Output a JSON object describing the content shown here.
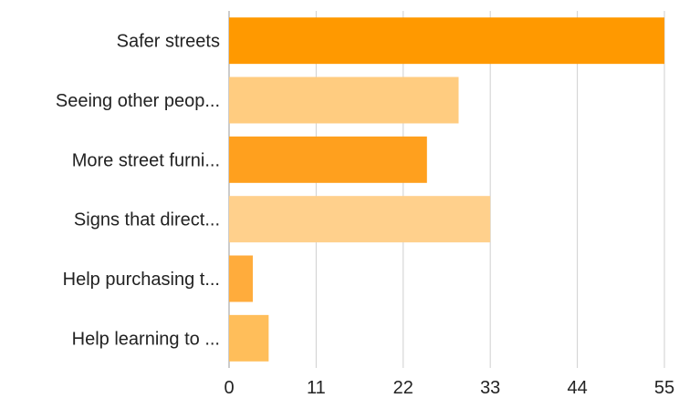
{
  "chart_data": {
    "type": "bar",
    "orientation": "horizontal",
    "categories": [
      "Safer streets",
      "Seeing other peop...",
      "More street furni...",
      "Signs that direct...",
      "Help purchasing t...",
      "Help learning to ..."
    ],
    "values": [
      55,
      29,
      25,
      33,
      3,
      5
    ],
    "bar_colors": [
      "#ff9900",
      "#ffcc80",
      "#ffa01e",
      "#ffd08c",
      "#ffac3c",
      "#ffbe5a"
    ],
    "xlim": [
      0,
      55
    ],
    "xticks": [
      0,
      11,
      22,
      33,
      44,
      55
    ],
    "grid": true,
    "title": "",
    "xlabel": "",
    "ylabel": ""
  }
}
